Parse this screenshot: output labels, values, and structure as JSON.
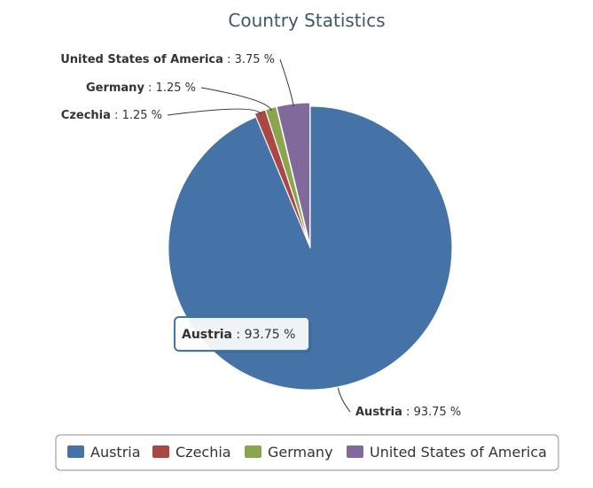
{
  "chart_data": {
    "type": "pie",
    "title": "Country Statistics",
    "slices": [
      {
        "name": "Austria",
        "value": 93.75,
        "label": "93.75 %",
        "color": "#4572a7"
      },
      {
        "name": "Czechia",
        "value": 1.25,
        "label": "1.25 %",
        "color": "#aa4643"
      },
      {
        "name": "Germany",
        "value": 1.25,
        "label": "1.25 %",
        "color": "#89a54e"
      },
      {
        "name": "United States of America",
        "value": 3.75,
        "label": "3.75 %",
        "color": "#80699b"
      }
    ],
    "separator": " : ",
    "legend_position": "bottom-center",
    "tooltip": {
      "name": "Austria",
      "label": "93.75 %"
    }
  }
}
